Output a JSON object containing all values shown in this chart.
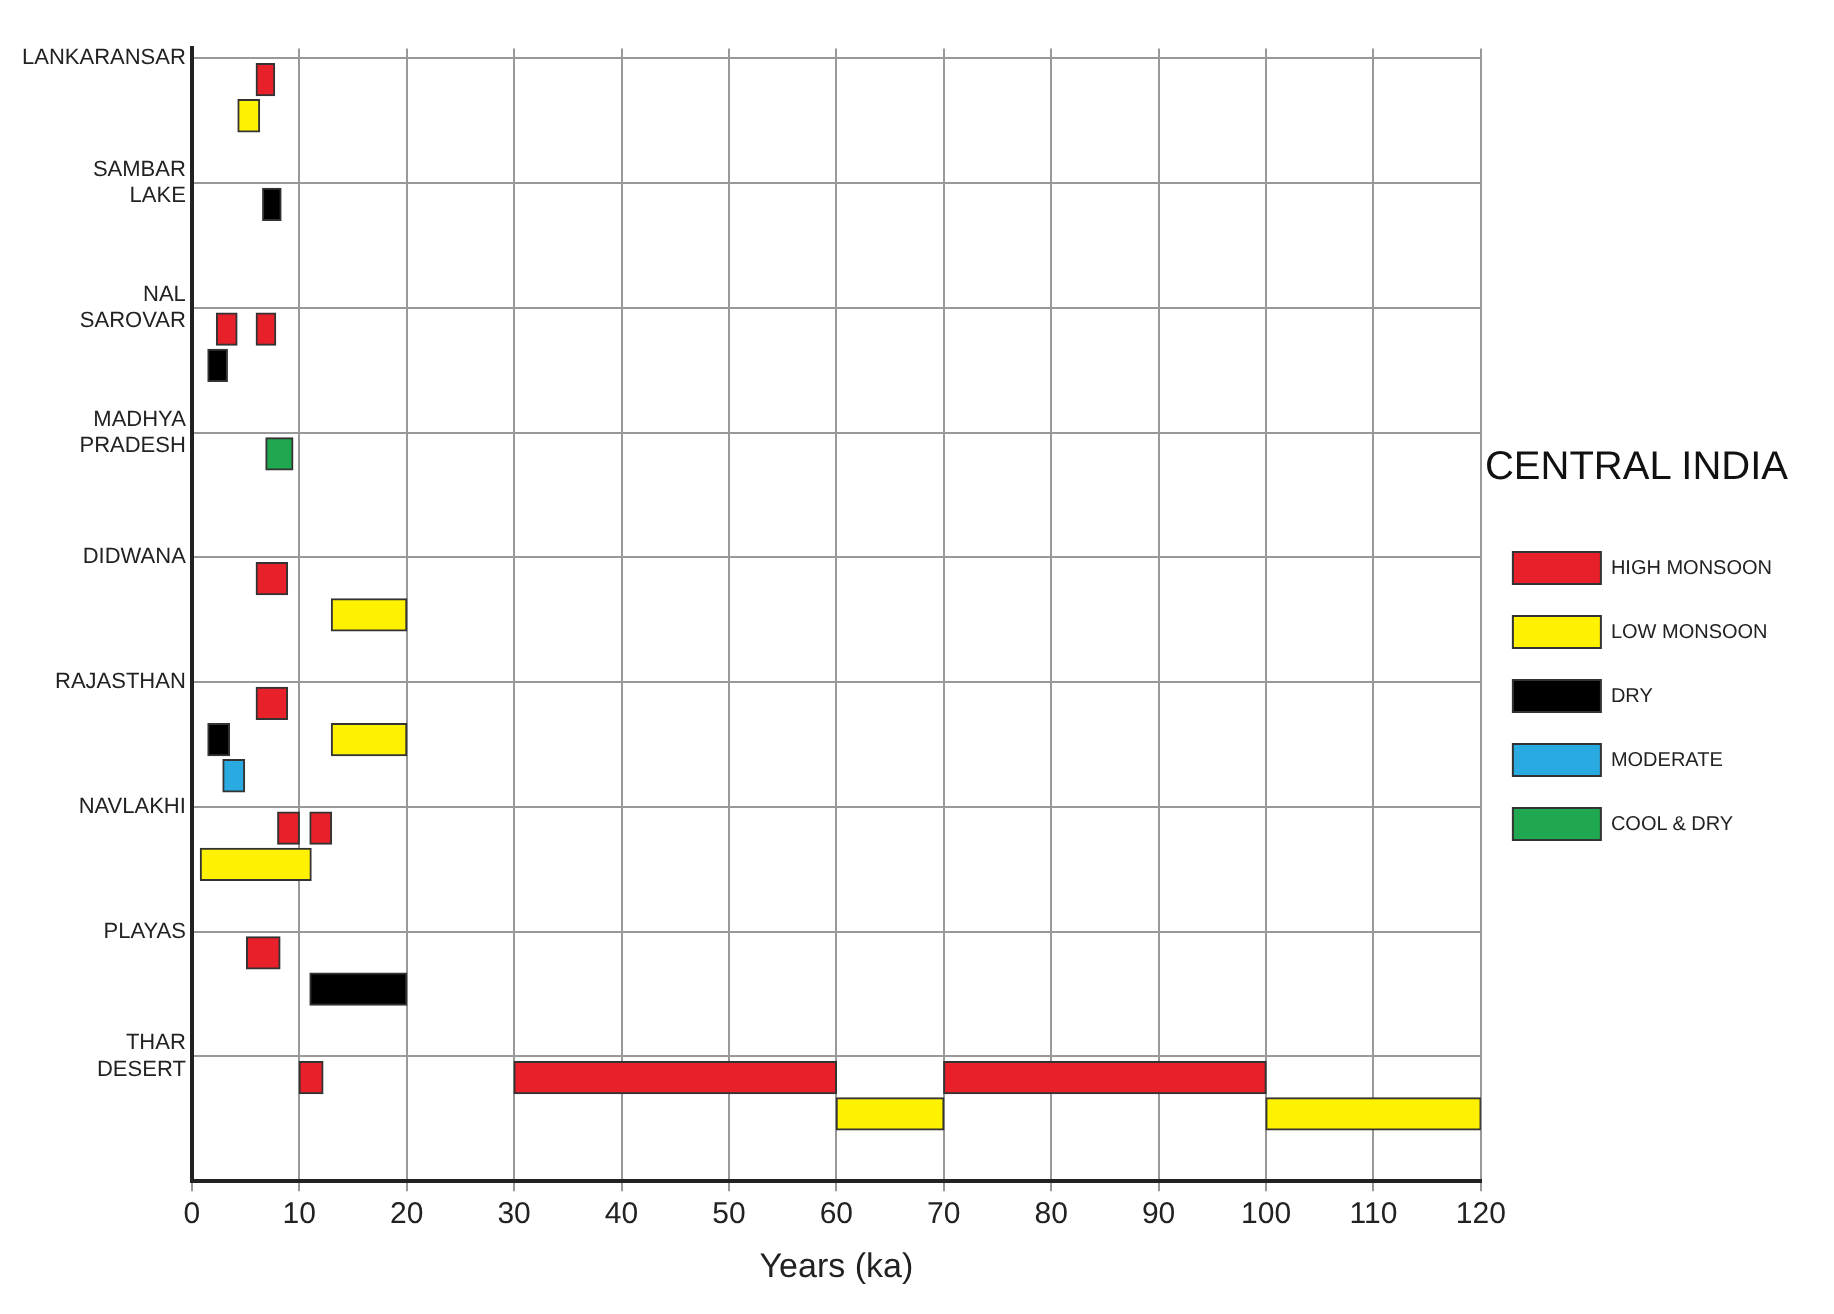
{
  "chart_data": {
    "type": "bar",
    "orientation": "horizontal",
    "xlabel": "Years (ka)",
    "legend_title": "CENTRAL INDIA",
    "legend": "right",
    "grid": true,
    "categories": [
      "LANKARANSAR",
      "SAMBAR LAKE",
      "NAL SAROVAR",
      "MADHYA PRADESH",
      "DIDWANA",
      "RAJASTHAN",
      "NAVLAKHI",
      "PLAYAS",
      "THAR DESERT"
    ],
    "xlim": [
      0,
      120
    ],
    "xticks": [
      0,
      10,
      20,
      30,
      40,
      50,
      60,
      70,
      80,
      90,
      100,
      110,
      120
    ],
    "series": [
      {
        "name": "HIGH MONSOON",
        "color": "#e8202a",
        "base": [
          6,
          null,
          2.3,
          null,
          6,
          6,
          8,
          5.1,
          10
        ],
        "values": [
          1.7,
          null,
          1.9,
          null,
          2.9,
          2.9,
          2,
          3.1,
          2.2
        ]
      },
      {
        "name": "LOW MONSOON",
        "color": "#fff200",
        "base": [
          4.3,
          null,
          null,
          null,
          13,
          13,
          0.8,
          null,
          60
        ],
        "values": [
          2,
          null,
          null,
          null,
          7,
          7,
          10.3,
          null,
          10
        ]
      },
      {
        "name": "DRY",
        "color": "#000000",
        "base": [
          null,
          6.6,
          1.5,
          null,
          null,
          1.5,
          null,
          11,
          null
        ],
        "values": [
          null,
          1.7,
          1.8,
          null,
          null,
          2,
          null,
          9,
          null
        ]
      },
      {
        "name": "MODERATE",
        "color": "#29abe2",
        "base": [
          null,
          null,
          null,
          null,
          null,
          2.9,
          null,
          null,
          null
        ],
        "values": [
          null,
          null,
          null,
          null,
          null,
          2,
          null,
          null,
          null
        ]
      },
      {
        "name": "COOL & DRY",
        "color": "#1fa84f",
        "base": [
          null,
          null,
          null,
          6.9,
          null,
          null,
          null,
          null,
          null
        ],
        "values": [
          null,
          null,
          null,
          2.5,
          null,
          null,
          null,
          null,
          null
        ]
      },
      {
        "color": "#e8202a",
        "base": [
          null,
          null,
          6,
          null,
          null,
          null,
          11,
          null,
          30
        ],
        "values": [
          null,
          null,
          1.8,
          null,
          null,
          null,
          2,
          null,
          30
        ]
      },
      {
        "color": "#e8202a",
        "base": [
          null,
          null,
          null,
          null,
          null,
          null,
          null,
          null,
          70
        ],
        "values": [
          null,
          null,
          null,
          null,
          null,
          null,
          null,
          null,
          30
        ]
      },
      {
        "color": "#fff200",
        "base": [
          null,
          null,
          null,
          null,
          null,
          null,
          null,
          null,
          100
        ],
        "values": [
          null,
          null,
          null,
          null,
          null,
          null,
          null,
          null,
          20
        ]
      }
    ]
  }
}
